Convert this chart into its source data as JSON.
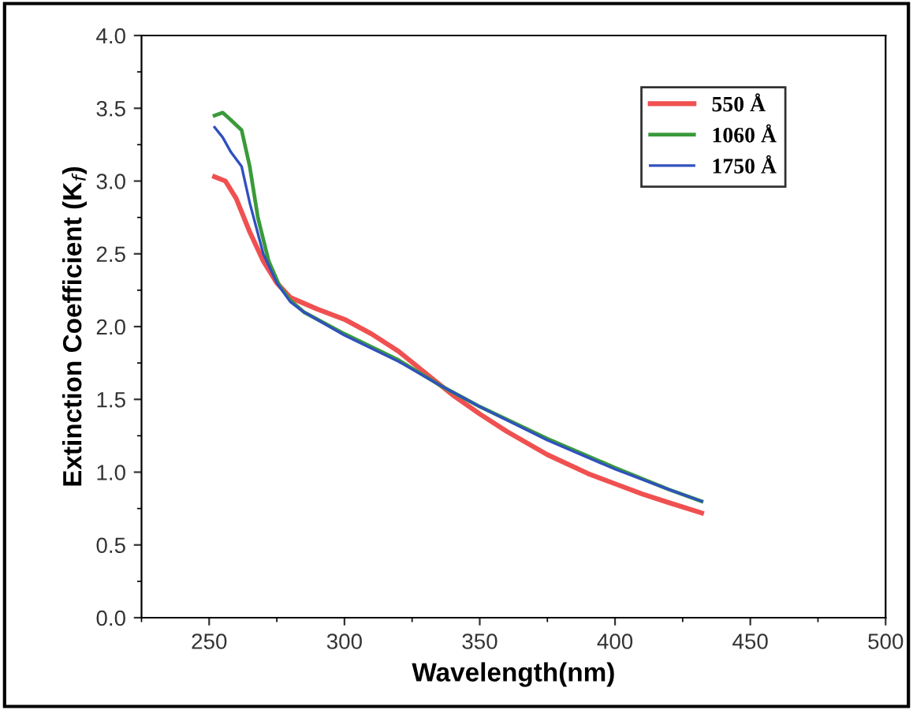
{
  "chart_data": {
    "type": "line",
    "xlabel": "Wavelength(nm)",
    "ylabel": "Extinction Coefficient (K$_{f}$)",
    "xlim": [
      225,
      500
    ],
    "xticks": [
      250,
      300,
      350,
      400,
      450,
      500
    ],
    "ylim": [
      0,
      4
    ],
    "yticks": [
      {
        "value": 0,
        "label": "0.0"
      },
      {
        "value": 0.5,
        "label": "0.5"
      },
      {
        "value": 1,
        "label": "1.0"
      },
      {
        "value": 1.5,
        "label": "1.5"
      },
      {
        "value": 2,
        "label": "2.0"
      },
      {
        "value": 2.5,
        "label": "2.5"
      },
      {
        "value": 3,
        "label": "3.0"
      },
      {
        "value": 3.5,
        "label": "3.5"
      },
      {
        "value": 4,
        "label": "4.0"
      }
    ],
    "grid": false,
    "legend": "top right",
    "marker": "none",
    "line_style": "solid",
    "series": [
      {
        "name": "550 Å",
        "color": "#f05050",
        "x": [
          252,
          256,
          260,
          265,
          270,
          275,
          280,
          290,
          300,
          310,
          320,
          330,
          340,
          350,
          360,
          375,
          390,
          400,
          410,
          420,
          432
        ],
        "values": [
          3.03,
          3.0,
          2.88,
          2.65,
          2.45,
          2.3,
          2.2,
          2.12,
          2.05,
          1.95,
          1.83,
          1.68,
          1.53,
          1.4,
          1.28,
          1.12,
          0.99,
          0.92,
          0.85,
          0.79,
          0.72
        ]
      },
      {
        "name": "1060 Å",
        "color": "#3a9a3a",
        "x": [
          252,
          255,
          258,
          262,
          265,
          268,
          272,
          276,
          280,
          285,
          300,
          320,
          335,
          350,
          375,
          400,
          420,
          432
        ],
        "values": [
          3.45,
          3.47,
          3.42,
          3.35,
          3.1,
          2.75,
          2.45,
          2.28,
          2.18,
          2.1,
          1.95,
          1.77,
          1.6,
          1.45,
          1.23,
          1.03,
          0.88,
          0.8
        ]
      },
      {
        "name": "1750 Å",
        "color": "#3050c0",
        "x": [
          252,
          255,
          258,
          262,
          265,
          270,
          275,
          280,
          285,
          300,
          320,
          335,
          350,
          375,
          400,
          420,
          432
        ],
        "values": [
          3.37,
          3.3,
          3.2,
          3.1,
          2.85,
          2.5,
          2.3,
          2.17,
          2.1,
          1.94,
          1.76,
          1.6,
          1.45,
          1.22,
          1.02,
          0.88,
          0.8
        ]
      }
    ]
  }
}
